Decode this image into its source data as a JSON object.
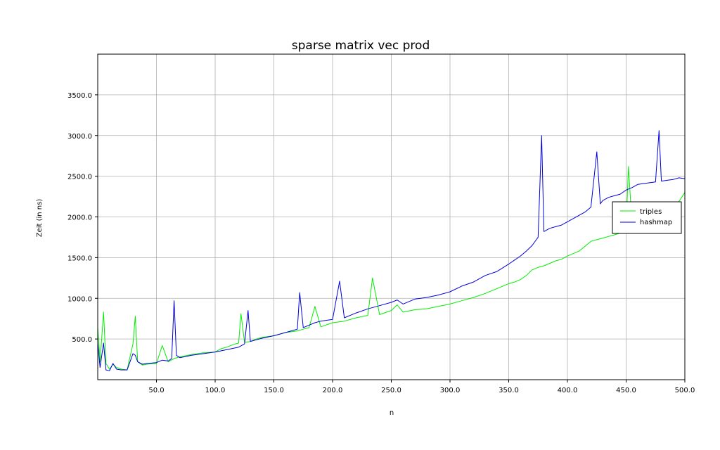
{
  "chart_data": {
    "type": "line",
    "title": "sparse matrix vec prod",
    "xlabel": "n",
    "ylabel": "Zeit (in ns)",
    "xlim": [
      0,
      500
    ],
    "ylim": [
      0,
      4000
    ],
    "xticks": [
      50,
      100,
      150,
      200,
      250,
      300,
      350,
      400,
      450,
      500
    ],
    "xtick_labels": [
      "50.0",
      "100.0",
      "150.0",
      "200.0",
      "250.0",
      "300.0",
      "350.0",
      "400.0",
      "450.0",
      "500.0"
    ],
    "yticks": [
      500,
      1000,
      1500,
      2000,
      2500,
      3000,
      3500
    ],
    "ytick_labels": [
      "500.0",
      "1000.0",
      "1500.0",
      "2000.0",
      "2500.0",
      "3000.0",
      "3500.0"
    ],
    "grid": true,
    "legend_position": "right",
    "series": [
      {
        "name": "triples",
        "color": "#00ee00",
        "x": [
          0,
          2,
          5,
          7,
          10,
          13,
          16,
          20,
          25,
          30,
          32,
          34,
          38,
          42,
          50,
          55,
          60,
          65,
          70,
          80,
          90,
          100,
          105,
          110,
          115,
          120,
          122,
          125,
          130,
          135,
          140,
          150,
          160,
          170,
          175,
          180,
          185,
          190,
          200,
          210,
          220,
          230,
          234,
          240,
          250,
          255,
          260,
          270,
          280,
          290,
          300,
          310,
          320,
          330,
          340,
          350,
          355,
          360,
          365,
          370,
          375,
          380,
          385,
          390,
          395,
          400,
          405,
          410,
          415,
          420,
          425,
          430,
          435,
          440,
          445,
          450,
          452,
          455,
          460,
          465,
          470,
          475,
          480,
          485,
          490,
          495,
          500
        ],
        "y": [
          640,
          220,
          830,
          200,
          130,
          190,
          150,
          130,
          120,
          440,
          780,
          220,
          180,
          190,
          200,
          420,
          220,
          260,
          280,
          310,
          330,
          340,
          380,
          400,
          430,
          450,
          810,
          460,
          470,
          500,
          520,
          540,
          580,
          600,
          620,
          640,
          900,
          650,
          700,
          720,
          760,
          790,
          1250,
          800,
          850,
          920,
          830,
          860,
          870,
          900,
          930,
          970,
          1010,
          1060,
          1120,
          1180,
          1200,
          1230,
          1280,
          1350,
          1380,
          1400,
          1430,
          1460,
          1480,
          1520,
          1550,
          1580,
          1640,
          1700,
          1720,
          1740,
          1760,
          1780,
          1800,
          1880,
          2620,
          1900,
          1940,
          1980,
          2010,
          2040,
          2090,
          2110,
          2150,
          2190,
          2300
        ]
      },
      {
        "name": "hashmap",
        "color": "#0000dd",
        "x": [
          0,
          2,
          5,
          7,
          10,
          13,
          16,
          20,
          25,
          30,
          32,
          34,
          38,
          42,
          50,
          55,
          60,
          63,
          65,
          67,
          70,
          80,
          90,
          100,
          110,
          120,
          125,
          128,
          130,
          135,
          140,
          150,
          160,
          170,
          172,
          175,
          180,
          185,
          190,
          200,
          206,
          210,
          220,
          230,
          240,
          250,
          255,
          260,
          270,
          280,
          290,
          300,
          310,
          320,
          330,
          340,
          350,
          355,
          360,
          365,
          370,
          375,
          378,
          380,
          385,
          390,
          395,
          400,
          405,
          410,
          415,
          420,
          425,
          428,
          430,
          435,
          440,
          445,
          450,
          455,
          460,
          465,
          470,
          475,
          478,
          480,
          485,
          490,
          495,
          500
        ],
        "y": [
          450,
          150,
          450,
          120,
          110,
          200,
          130,
          120,
          120,
          320,
          300,
          220,
          190,
          200,
          210,
          240,
          230,
          260,
          970,
          300,
          270,
          300,
          320,
          340,
          370,
          400,
          440,
          850,
          470,
          490,
          510,
          540,
          580,
          620,
          1070,
          640,
          670,
          700,
          720,
          740,
          1210,
          760,
          820,
          870,
          910,
          950,
          980,
          930,
          990,
          1010,
          1040,
          1080,
          1150,
          1200,
          1280,
          1330,
          1420,
          1470,
          1520,
          1580,
          1650,
          1750,
          3000,
          1820,
          1860,
          1880,
          1900,
          1940,
          1980,
          2020,
          2060,
          2120,
          2800,
          2160,
          2200,
          2240,
          2260,
          2280,
          2330,
          2360,
          2400,
          2410,
          2420,
          2430,
          3060,
          2440,
          2450,
          2460,
          2480,
          2470
        ]
      }
    ]
  }
}
